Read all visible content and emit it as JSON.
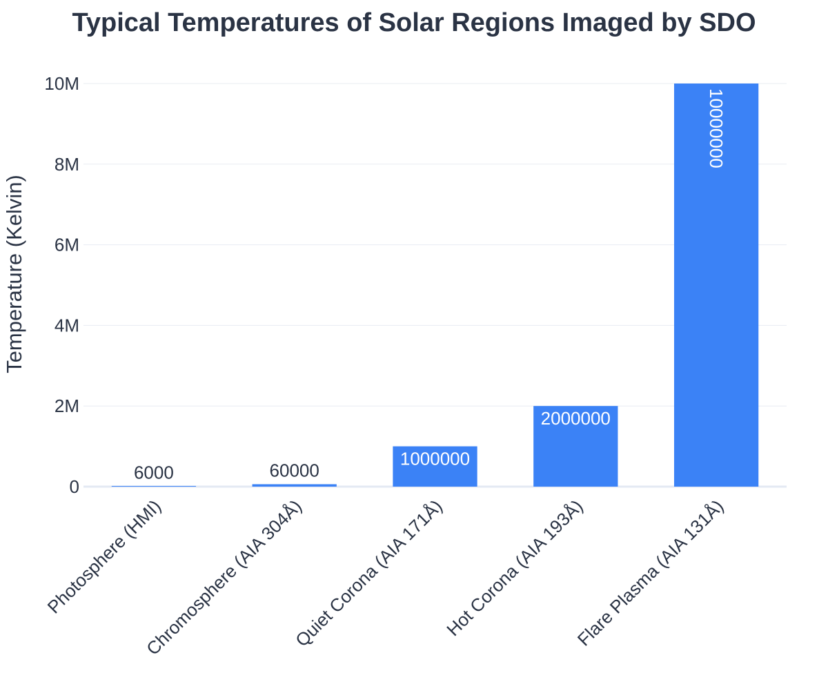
{
  "chart_data": {
    "type": "bar",
    "title": "Typical Temperatures of Solar Regions Imaged by SDO",
    "xlabel": "",
    "ylabel": "Temperature (Kelvin)",
    "categories": [
      "Photosphere (HMI)",
      "Chromosphere (AIA 304Å)",
      "Quiet Corona (AIA 171Å)",
      "Hot Corona (AIA 193Å)",
      "Flare Plasma (AIA 131Å)"
    ],
    "values": [
      6000,
      60000,
      1000000,
      2000000,
      10000000
    ],
    "data_labels": [
      "6000",
      "60000",
      "1000000",
      "2000000",
      "10000000"
    ],
    "ylim": [
      0,
      10000000
    ],
    "y_ticks": [
      0,
      2000000,
      4000000,
      6000000,
      8000000,
      10000000
    ],
    "y_tick_labels": [
      "0",
      "2M",
      "4M",
      "6M",
      "8M",
      "10M"
    ],
    "grid": true,
    "legend": "none",
    "bar_color": "#3b82f6"
  }
}
